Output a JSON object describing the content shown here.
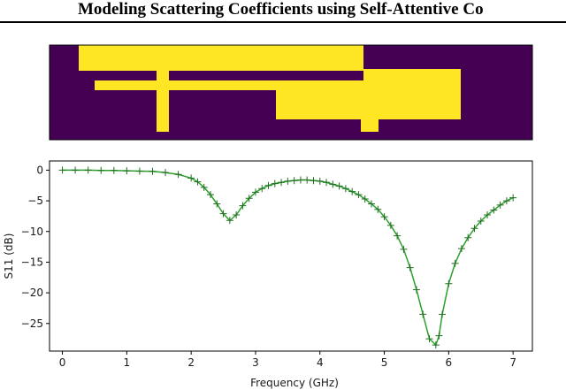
{
  "header": {
    "title": "Modeling Scattering Coefficients using Self-Attentive Co"
  },
  "layout_figure": {
    "background_color": "#440154",
    "shape_color": "#fde725",
    "grid": {
      "cols": 546,
      "rows": 107,
      "rects": [
        [
          33,
          0,
          355,
          29
        ],
        [
          355,
          27,
          465,
          84
        ],
        [
          51,
          40,
          355,
          51
        ],
        [
          121,
          29,
          135,
          98
        ],
        [
          256,
          51,
          355,
          84
        ],
        [
          352,
          84,
          372,
          98
        ]
      ]
    }
  },
  "chart_data": {
    "type": "line",
    "xlabel": "Frequency (GHz)",
    "ylabel": "S11 (dB)",
    "xlim": [
      -0.2,
      7.3
    ],
    "ylim": [
      -29.5,
      1.5
    ],
    "xticks": [
      "0",
      "1",
      "2",
      "3",
      "4",
      "5",
      "6",
      "7"
    ],
    "yticks": [
      "0",
      "−5",
      "−10",
      "−15",
      "−20",
      "−25"
    ],
    "line_color": "#2ca02c",
    "marker_color": "#1f6e1f",
    "x": [
      0.0,
      0.2,
      0.4,
      0.6,
      0.8,
      1.0,
      1.2,
      1.4,
      1.6,
      1.8,
      2.0,
      2.1,
      2.2,
      2.3,
      2.4,
      2.5,
      2.6,
      2.7,
      2.8,
      2.9,
      3.0,
      3.1,
      3.2,
      3.3,
      3.4,
      3.5,
      3.6,
      3.7,
      3.8,
      3.9,
      4.0,
      4.1,
      4.2,
      4.3,
      4.4,
      4.5,
      4.6,
      4.7,
      4.8,
      4.9,
      5.0,
      5.1,
      5.2,
      5.3,
      5.4,
      5.5,
      5.6,
      5.7,
      5.8,
      5.85,
      5.9,
      6.0,
      6.1,
      6.2,
      6.3,
      6.4,
      6.5,
      6.6,
      6.7,
      6.8,
      6.9,
      7.0
    ],
    "y": [
      0.0,
      0.0,
      0.0,
      -0.05,
      -0.05,
      -0.1,
      -0.15,
      -0.2,
      -0.4,
      -0.7,
      -1.3,
      -1.9,
      -2.8,
      -4.0,
      -5.5,
      -7.1,
      -8.2,
      -7.3,
      -5.8,
      -4.6,
      -3.6,
      -3.0,
      -2.5,
      -2.2,
      -2.0,
      -1.8,
      -1.7,
      -1.6,
      -1.6,
      -1.7,
      -1.8,
      -2.0,
      -2.3,
      -2.6,
      -3.0,
      -3.5,
      -4.0,
      -4.7,
      -5.5,
      -6.4,
      -7.6,
      -9.0,
      -10.7,
      -12.9,
      -15.9,
      -19.5,
      -23.5,
      -27.5,
      -28.5,
      -27.0,
      -23.5,
      -18.5,
      -15.2,
      -12.8,
      -11.0,
      -9.5,
      -8.3,
      -7.3,
      -6.5,
      -5.7,
      -5.0,
      -4.5
    ]
  }
}
